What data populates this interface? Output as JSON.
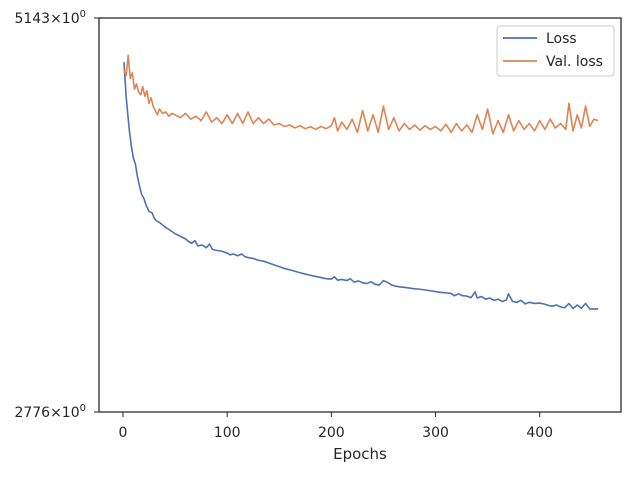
{
  "chart_data": {
    "type": "line",
    "title": "",
    "xlabel": "Epochs",
    "ylabel": "",
    "xlim": [
      -23,
      478
    ],
    "ylim": [
      2776,
      5143
    ],
    "y_scale": "log",
    "grid": false,
    "legend_position": "top-right",
    "x_ticks": [
      0,
      100,
      200,
      300,
      400
    ],
    "x_tick_labels": [
      "0",
      "100",
      "200",
      "300",
      "400"
    ],
    "y_tick_labels": [
      "5143",
      "2776"
    ],
    "series": [
      {
        "name": "Loss",
        "color": "#4c72b0",
        "points": [
          [
            1,
            4800
          ],
          [
            3,
            4550
          ],
          [
            6,
            4320
          ],
          [
            8,
            4210
          ],
          [
            10,
            4130
          ],
          [
            12,
            4090
          ],
          [
            14,
            4010
          ],
          [
            16,
            3950
          ],
          [
            18,
            3900
          ],
          [
            20,
            3880
          ],
          [
            22,
            3840
          ],
          [
            25,
            3800
          ],
          [
            28,
            3790
          ],
          [
            30,
            3760
          ],
          [
            32,
            3745
          ],
          [
            35,
            3735
          ],
          [
            38,
            3720
          ],
          [
            40,
            3710
          ],
          [
            45,
            3690
          ],
          [
            50,
            3670
          ],
          [
            55,
            3655
          ],
          [
            60,
            3640
          ],
          [
            63,
            3625
          ],
          [
            66,
            3615
          ],
          [
            69,
            3630
          ],
          [
            72,
            3600
          ],
          [
            76,
            3605
          ],
          [
            80,
            3590
          ],
          [
            83,
            3610
          ],
          [
            86,
            3580
          ],
          [
            90,
            3575
          ],
          [
            95,
            3570
          ],
          [
            100,
            3560
          ],
          [
            103,
            3550
          ],
          [
            106,
            3555
          ],
          [
            110,
            3545
          ],
          [
            114,
            3555
          ],
          [
            117,
            3540
          ],
          [
            120,
            3535
          ],
          [
            125,
            3530
          ],
          [
            130,
            3520
          ],
          [
            135,
            3515
          ],
          [
            140,
            3505
          ],
          [
            145,
            3495
          ],
          [
            150,
            3485
          ],
          [
            155,
            3475
          ],
          [
            160,
            3468
          ],
          [
            165,
            3460
          ],
          [
            170,
            3452
          ],
          [
            175,
            3445
          ],
          [
            180,
            3438
          ],
          [
            185,
            3432
          ],
          [
            190,
            3426
          ],
          [
            195,
            3420
          ],
          [
            200,
            3418
          ],
          [
            203,
            3430
          ],
          [
            206,
            3412
          ],
          [
            210,
            3416
          ],
          [
            215,
            3410
          ],
          [
            218,
            3420
          ],
          [
            222,
            3402
          ],
          [
            226,
            3408
          ],
          [
            230,
            3398
          ],
          [
            234,
            3394
          ],
          [
            238,
            3404
          ],
          [
            242,
            3390
          ],
          [
            246,
            3386
          ],
          [
            250,
            3410
          ],
          [
            254,
            3400
          ],
          [
            258,
            3386
          ],
          [
            262,
            3380
          ],
          [
            266,
            3376
          ],
          [
            270,
            3374
          ],
          [
            275,
            3370
          ],
          [
            280,
            3366
          ],
          [
            285,
            3364
          ],
          [
            290,
            3360
          ],
          [
            295,
            3356
          ],
          [
            300,
            3352
          ],
          [
            305,
            3348
          ],
          [
            310,
            3345
          ],
          [
            315,
            3342
          ],
          [
            318,
            3330
          ],
          [
            322,
            3340
          ],
          [
            326,
            3330
          ],
          [
            330,
            3328
          ],
          [
            334,
            3320
          ],
          [
            338,
            3350
          ],
          [
            340,
            3318
          ],
          [
            344,
            3326
          ],
          [
            348,
            3312
          ],
          [
            352,
            3318
          ],
          [
            356,
            3306
          ],
          [
            360,
            3312
          ],
          [
            364,
            3300
          ],
          [
            368,
            3308
          ],
          [
            370,
            3340
          ],
          [
            374,
            3300
          ],
          [
            378,
            3296
          ],
          [
            382,
            3306
          ],
          [
            386,
            3288
          ],
          [
            390,
            3296
          ],
          [
            395,
            3290
          ],
          [
            400,
            3292
          ],
          [
            405,
            3286
          ],
          [
            408,
            3280
          ],
          [
            412,
            3276
          ],
          [
            416,
            3282
          ],
          [
            420,
            3272
          ],
          [
            424,
            3268
          ],
          [
            428,
            3290
          ],
          [
            432,
            3264
          ],
          [
            436,
            3282
          ],
          [
            440,
            3266
          ],
          [
            444,
            3290
          ],
          [
            448,
            3262
          ],
          [
            452,
            3262
          ],
          [
            456,
            3262
          ]
        ]
      },
      {
        "name": "Val. loss",
        "color": "#dd8452",
        "points": [
          [
            1,
            4740
          ],
          [
            3,
            4700
          ],
          [
            5,
            4850
          ],
          [
            7,
            4680
          ],
          [
            9,
            4720
          ],
          [
            11,
            4600
          ],
          [
            13,
            4640
          ],
          [
            15,
            4580
          ],
          [
            17,
            4560
          ],
          [
            19,
            4620
          ],
          [
            21,
            4550
          ],
          [
            23,
            4590
          ],
          [
            25,
            4500
          ],
          [
            27,
            4540
          ],
          [
            29,
            4480
          ],
          [
            31,
            4450
          ],
          [
            33,
            4420
          ],
          [
            35,
            4460
          ],
          [
            38,
            4430
          ],
          [
            41,
            4440
          ],
          [
            44,
            4410
          ],
          [
            47,
            4430
          ],
          [
            50,
            4420
          ],
          [
            55,
            4400
          ],
          [
            60,
            4430
          ],
          [
            65,
            4390
          ],
          [
            70,
            4410
          ],
          [
            75,
            4380
          ],
          [
            80,
            4440
          ],
          [
            85,
            4370
          ],
          [
            90,
            4400
          ],
          [
            95,
            4360
          ],
          [
            100,
            4420
          ],
          [
            105,
            4360
          ],
          [
            110,
            4430
          ],
          [
            115,
            4360
          ],
          [
            120,
            4440
          ],
          [
            125,
            4360
          ],
          [
            130,
            4400
          ],
          [
            135,
            4360
          ],
          [
            140,
            4390
          ],
          [
            145,
            4350
          ],
          [
            150,
            4360
          ],
          [
            155,
            4340
          ],
          [
            160,
            4350
          ],
          [
            165,
            4330
          ],
          [
            170,
            4345
          ],
          [
            175,
            4325
          ],
          [
            180,
            4338
          ],
          [
            185,
            4320
          ],
          [
            190,
            4340
          ],
          [
            195,
            4325
          ],
          [
            200,
            4345
          ],
          [
            203,
            4400
          ],
          [
            206,
            4310
          ],
          [
            210,
            4370
          ],
          [
            215,
            4320
          ],
          [
            220,
            4390
          ],
          [
            225,
            4300
          ],
          [
            230,
            4450
          ],
          [
            235,
            4310
          ],
          [
            240,
            4420
          ],
          [
            245,
            4300
          ],
          [
            250,
            4480
          ],
          [
            255,
            4320
          ],
          [
            260,
            4400
          ],
          [
            265,
            4310
          ],
          [
            270,
            4360
          ],
          [
            275,
            4320
          ],
          [
            280,
            4350
          ],
          [
            285,
            4315
          ],
          [
            290,
            4345
          ],
          [
            295,
            4320
          ],
          [
            300,
            4340
          ],
          [
            305,
            4310
          ],
          [
            310,
            4355
          ],
          [
            315,
            4300
          ],
          [
            320,
            4360
          ],
          [
            325,
            4310
          ],
          [
            330,
            4350
          ],
          [
            335,
            4300
          ],
          [
            340,
            4420
          ],
          [
            345,
            4320
          ],
          [
            350,
            4460
          ],
          [
            355,
            4290
          ],
          [
            360,
            4380
          ],
          [
            365,
            4300
          ],
          [
            370,
            4420
          ],
          [
            375,
            4310
          ],
          [
            380,
            4380
          ],
          [
            385,
            4320
          ],
          [
            390,
            4360
          ],
          [
            395,
            4310
          ],
          [
            400,
            4380
          ],
          [
            405,
            4320
          ],
          [
            410,
            4390
          ],
          [
            415,
            4330
          ],
          [
            420,
            4360
          ],
          [
            425,
            4320
          ],
          [
            428,
            4500
          ],
          [
            432,
            4310
          ],
          [
            436,
            4420
          ],
          [
            440,
            4330
          ],
          [
            444,
            4480
          ],
          [
            448,
            4340
          ],
          [
            452,
            4390
          ],
          [
            456,
            4380
          ]
        ]
      }
    ]
  }
}
